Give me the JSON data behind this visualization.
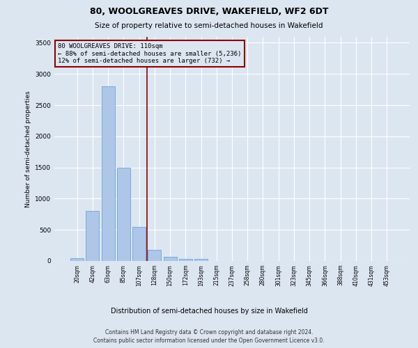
{
  "title": "80, WOOLGREAVES DRIVE, WAKEFIELD, WF2 6DT",
  "subtitle": "Size of property relative to semi-detached houses in Wakefield",
  "xlabel": "Distribution of semi-detached houses by size in Wakefield",
  "ylabel": "Number of semi-detached properties",
  "footer_line1": "Contains HM Land Registry data © Crown copyright and database right 2024.",
  "footer_line2": "Contains public sector information licensed under the Open Government Licence v3.0.",
  "annotation_line1": "80 WOOLGREAVES DRIVE: 110sqm",
  "annotation_line2": "← 88% of semi-detached houses are smaller (5,236)",
  "annotation_line3": "12% of semi-detached houses are larger (732) →",
  "bar_color": "#aec6e8",
  "bar_edge_color": "#5b9bd5",
  "vline_color": "#8b0000",
  "vline_x": 4.5,
  "categories": [
    "20sqm",
    "42sqm",
    "63sqm",
    "85sqm",
    "107sqm",
    "128sqm",
    "150sqm",
    "172sqm",
    "193sqm",
    "215sqm",
    "237sqm",
    "258sqm",
    "280sqm",
    "301sqm",
    "323sqm",
    "345sqm",
    "366sqm",
    "388sqm",
    "410sqm",
    "431sqm",
    "453sqm"
  ],
  "values": [
    50,
    800,
    2800,
    1500,
    550,
    175,
    70,
    35,
    30,
    0,
    0,
    0,
    0,
    0,
    0,
    0,
    0,
    0,
    0,
    0,
    0
  ],
  "ylim": [
    0,
    3600
  ],
  "yticks": [
    0,
    500,
    1000,
    1500,
    2000,
    2500,
    3000,
    3500
  ],
  "bg_color": "#dce6f1",
  "plot_bg_color": "#dce6f1",
  "grid_color": "white",
  "title_fontsize": 9,
  "subtitle_fontsize": 7.5,
  "ylabel_fontsize": 6.5,
  "xtick_fontsize": 5.5,
  "ytick_fontsize": 6.5,
  "annotation_fontsize": 6.5,
  "xlabel_fontsize": 7,
  "footer_fontsize": 5.5,
  "figsize": [
    6.0,
    5.0
  ],
  "dpi": 100
}
